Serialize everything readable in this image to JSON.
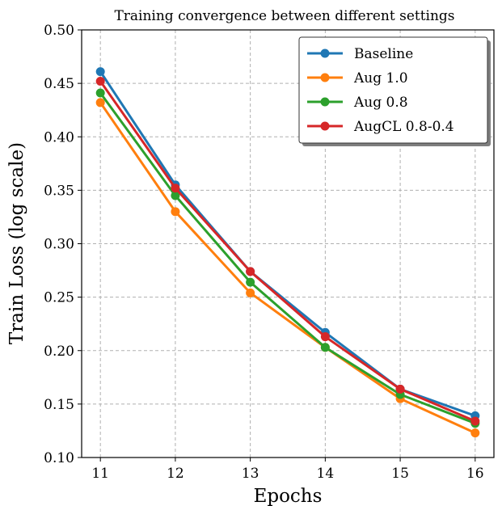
{
  "chart_data": {
    "type": "line",
    "title": "Training convergence between different settings",
    "xlabel": "Epochs",
    "ylabel": "Train Loss (log scale)",
    "x": [
      11,
      12,
      13,
      14,
      15,
      16
    ],
    "xlim": [
      10.75,
      16.25
    ],
    "ylim": [
      0.1,
      0.5
    ],
    "yticks": [
      "0.10",
      "0.15",
      "0.20",
      "0.25",
      "0.30",
      "0.35",
      "0.40",
      "0.45",
      "0.50"
    ],
    "xticks": [
      "11",
      "12",
      "13",
      "14",
      "15",
      "16"
    ],
    "grid": true,
    "legend_position": "top-right",
    "series": [
      {
        "name": "Baseline",
        "color": "#1f77b4",
        "values": [
          0.461,
          0.355,
          0.274,
          0.217,
          0.164,
          0.139
        ]
      },
      {
        "name": "Aug 1.0",
        "color": "#ff7f0e",
        "values": [
          0.432,
          0.33,
          0.254,
          0.203,
          0.155,
          0.123
        ]
      },
      {
        "name": "Aug 0.8",
        "color": "#2ca02c",
        "values": [
          0.441,
          0.345,
          0.264,
          0.203,
          0.159,
          0.132
        ]
      },
      {
        "name": "AugCL 0.8-0.4",
        "color": "#d62728",
        "values": [
          0.452,
          0.352,
          0.274,
          0.213,
          0.164,
          0.134
        ]
      }
    ]
  }
}
